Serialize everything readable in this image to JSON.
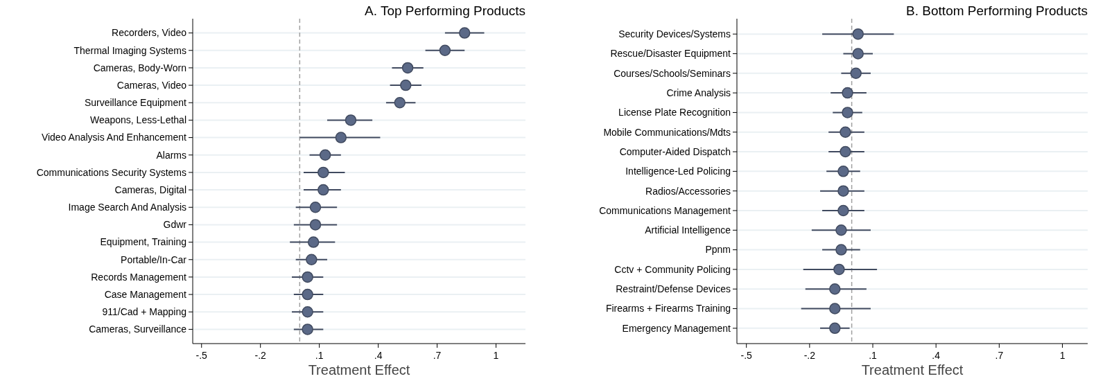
{
  "chart_data": [
    {
      "type": "scatter",
      "title": "A. Top Performing Products",
      "xlabel": "Treatment Effect",
      "orientation": "horizontal",
      "marker": "circle",
      "grid": "y",
      "color": "#5b6987",
      "categories": [
        "Recorders, Video",
        "Thermal Imaging Systems",
        "Cameras, Body-Worn",
        "Cameras, Video",
        "Surveillance Equipment",
        "Weapons, Less-Lethal",
        "Video Analysis And Enhancement",
        "Alarms",
        "Communications Security Systems",
        "Cameras, Digital",
        "Image Search And Analysis",
        "Gdwr",
        "Equipment, Training",
        "Portable/In-Car",
        "Records Management",
        "Case Management",
        "911/Cad + Mapping",
        "Cameras, Surveillance"
      ],
      "values": [
        0.84,
        0.74,
        0.55,
        0.54,
        0.51,
        0.26,
        0.21,
        0.13,
        0.12,
        0.12,
        0.08,
        0.08,
        0.07,
        0.06,
        0.04,
        0.04,
        0.04,
        0.04
      ],
      "errors": [
        [
          0.74,
          0.94
        ],
        [
          0.64,
          0.84
        ],
        [
          0.47,
          0.63
        ],
        [
          0.46,
          0.62
        ],
        [
          0.44,
          0.59
        ],
        [
          0.14,
          0.37
        ],
        [
          0,
          0.41
        ],
        [
          0.05,
          0.21
        ],
        [
          0.02,
          0.23
        ],
        [
          0.02,
          0.21
        ],
        [
          -0.02,
          0.19
        ],
        [
          -0.03,
          0.19
        ],
        [
          -0.05,
          0.18
        ],
        [
          -0.02,
          0.14
        ],
        [
          -0.04,
          0.12
        ],
        [
          -0.03,
          0.12
        ],
        [
          -0.04,
          0.12
        ],
        [
          -0.03,
          0.12
        ]
      ],
      "xlim": [
        -0.545,
        1.15
      ],
      "xticks": [
        {
          "value": -0.5,
          "label": "-.5"
        },
        {
          "value": -0.2,
          "label": "-.2"
        },
        {
          "value": 0.1,
          "label": ".1"
        },
        {
          "value": 0.4,
          "label": ".4"
        },
        {
          "value": 0.7,
          "label": ".7"
        },
        1
      ],
      "ref_lines": [
        {
          "axis": "x",
          "value": 0,
          "color": "#a0a0a0",
          "line_style": "dashed"
        }
      ]
    },
    {
      "type": "scatter",
      "title": "B. Bottom Performing Products",
      "xlabel": "Treatment Effect",
      "orientation": "horizontal",
      "marker": "circle",
      "grid": "y",
      "color": "#5b6987",
      "categories": [
        "Security Devices/Systems",
        "Rescue/Disaster Equipment",
        "Courses/Schools/Seminars",
        "Crime Analysis",
        "License Plate Recognition",
        "Mobile Communications/Mdts",
        "Computer-Aided Dispatch",
        "Intelligence-Led Policing",
        "Radios/Accessories",
        "Communications Management",
        "Artificial Intelligence",
        "Ppnm",
        "Cctv + Community Policing",
        "Restraint/Defense Devices",
        "Firearms + Firearms Training",
        "Emergency Management"
      ],
      "values": [
        0.03,
        0.03,
        0.02,
        -0.02,
        -0.02,
        -0.03,
        -0.03,
        -0.04,
        -0.04,
        -0.04,
        -0.05,
        -0.05,
        -0.06,
        -0.08,
        -0.08,
        -0.08
      ],
      "errors": [
        [
          -0.14,
          0.2
        ],
        [
          -0.04,
          0.1
        ],
        [
          -0.05,
          0.09
        ],
        [
          -0.1,
          0.07
        ],
        [
          -0.09,
          0.05
        ],
        [
          -0.11,
          0.06
        ],
        [
          -0.11,
          0.06
        ],
        [
          -0.12,
          0.04
        ],
        [
          -0.15,
          0.06
        ],
        [
          -0.14,
          0.06
        ],
        [
          -0.19,
          0.09
        ],
        [
          -0.14,
          0.04
        ],
        [
          -0.23,
          0.12
        ],
        [
          -0.22,
          0.07
        ],
        [
          -0.24,
          0.09
        ],
        [
          -0.15,
          -0.01
        ]
      ],
      "xlim": [
        -0.545,
        1.12
      ],
      "xticks": [
        {
          "value": -0.5,
          "label": "-.5"
        },
        {
          "value": -0.2,
          "label": "-.2"
        },
        {
          "value": 0.1,
          "label": ".1"
        },
        {
          "value": 0.4,
          "label": ".4"
        },
        {
          "value": 0.7,
          "label": ".7"
        },
        1
      ],
      "ref_lines": [
        {
          "axis": "x",
          "value": 0,
          "color": "#a0a0a0",
          "line_style": "dashed"
        }
      ]
    }
  ]
}
